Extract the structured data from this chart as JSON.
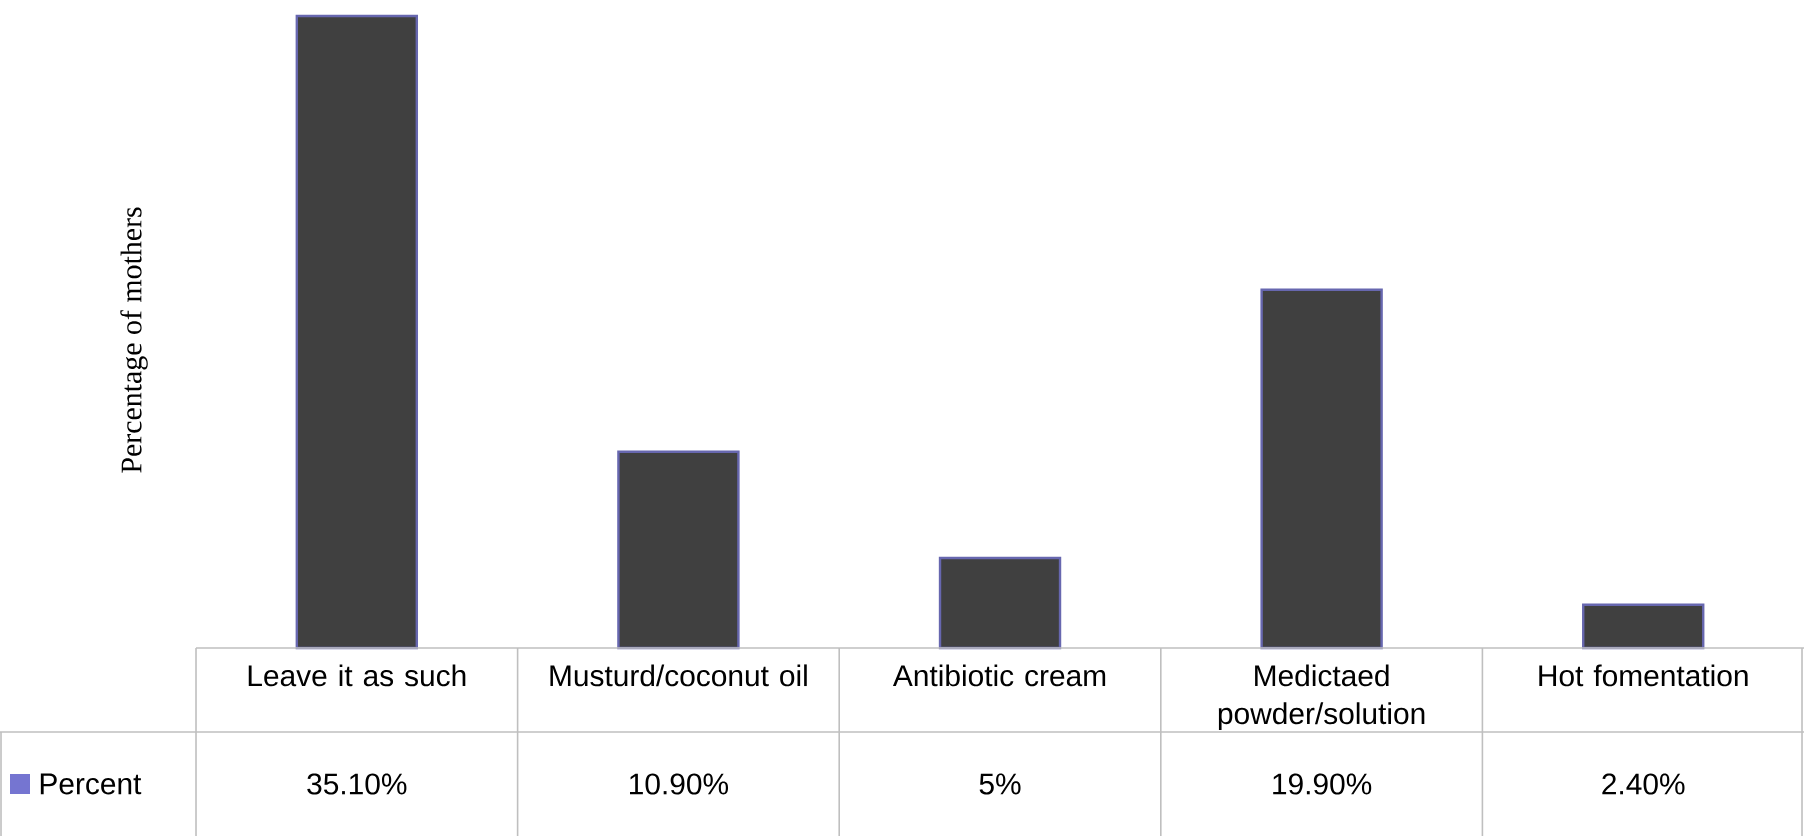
{
  "chart_data": {
    "type": "bar",
    "ylabel": "Percentage of mothers",
    "categories": [
      "Leave it as such",
      "Musturd/coconut oil",
      "Antibiotic cream",
      "Medictaed powder/solution",
      "Hot fomentation"
    ],
    "series": [
      {
        "name": "Percent",
        "color": "#404040",
        "values": [
          35.1,
          10.9,
          5,
          19.9,
          2.4
        ],
        "value_labels": [
          "35.10%",
          "10.90%",
          "5%",
          "19.90%",
          "2.40%"
        ]
      }
    ]
  }
}
